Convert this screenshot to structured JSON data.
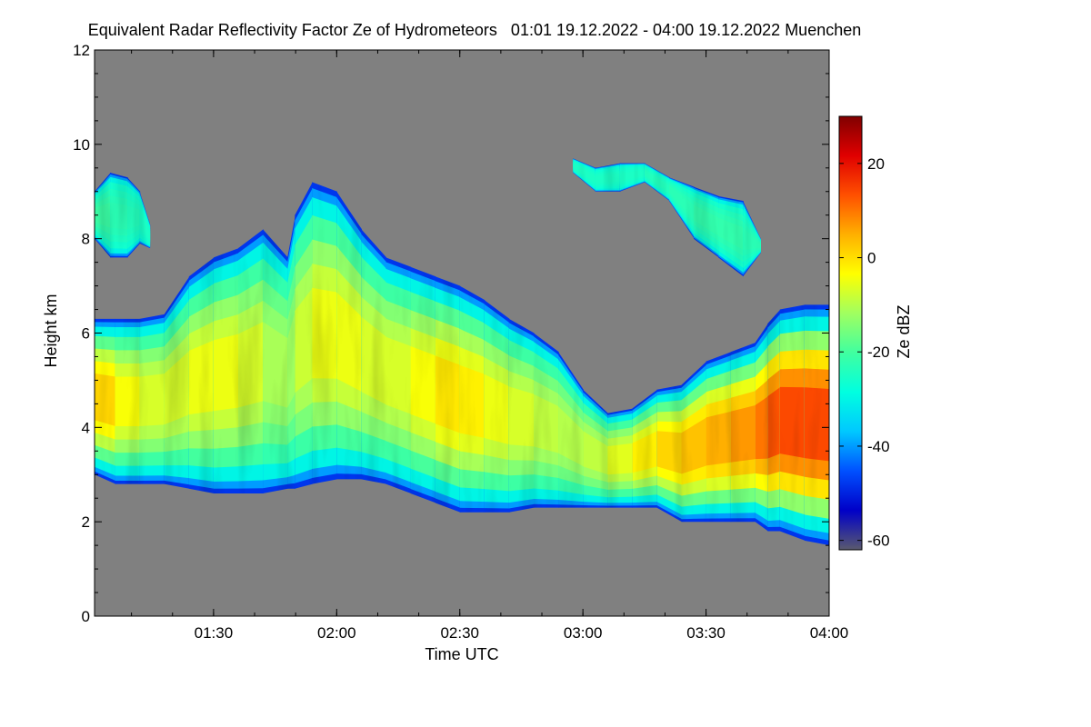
{
  "chart_data": {
    "type": "heatmap",
    "title": "Equivalent Radar Reflectivity Factor Ze of Hydrometeors   01:01 19.12.2022 - 04:00 19.12.2022 Muenchen",
    "xlabel": "Time UTC",
    "ylabel": "Height km",
    "x_unit": "hours UTC",
    "xlim": [
      1.0167,
      4.0
    ],
    "x_ticks": [
      {
        "value": 1.5,
        "label": "01:30"
      },
      {
        "value": 2.0,
        "label": "02:00"
      },
      {
        "value": 2.5,
        "label": "02:30"
      },
      {
        "value": 3.0,
        "label": "03:00"
      },
      {
        "value": 3.5,
        "label": "03:30"
      },
      {
        "value": 4.0,
        "label": "04:00"
      }
    ],
    "ylim": [
      0,
      12
    ],
    "y_ticks": [
      0,
      2,
      4,
      6,
      8,
      10,
      12
    ],
    "colorbar": {
      "label": "Ze dBZ",
      "range": [
        -62,
        30
      ],
      "ticks": [
        -60,
        -40,
        -20,
        0,
        20
      ]
    },
    "background_color": "#808080",
    "colormap": [
      "#5a5a6e",
      "#0000c8",
      "#0050ff",
      "#00c8ff",
      "#00ffe0",
      "#40ffa0",
      "#a0ff60",
      "#ffff00",
      "#ffb000",
      "#ff5000",
      "#e00000",
      "#800000"
    ],
    "cloud_layers": [
      {
        "name": "main precipitating cloud",
        "time": [
          1.0167,
          1.1,
          1.2,
          1.3,
          1.4,
          1.5,
          1.6,
          1.7,
          1.8,
          1.83,
          1.9,
          2.0,
          2.1,
          2.2,
          2.3,
          2.4,
          2.5,
          2.6,
          2.7,
          2.8,
          2.9,
          3.0,
          3.1,
          3.2,
          3.3,
          3.4,
          3.5,
          3.6,
          3.7,
          3.75,
          3.8,
          3.9,
          4.0
        ],
        "top_km": [
          6.3,
          6.3,
          6.3,
          6.4,
          7.2,
          7.6,
          7.8,
          8.2,
          7.6,
          8.5,
          9.2,
          9.0,
          8.2,
          7.6,
          7.4,
          7.2,
          7.0,
          6.7,
          6.3,
          6.0,
          5.6,
          4.8,
          4.3,
          4.4,
          4.8,
          4.9,
          5.4,
          5.6,
          5.8,
          6.2,
          6.5,
          6.6,
          6.6
        ],
        "base_km": [
          3.0,
          2.8,
          2.8,
          2.8,
          2.7,
          2.6,
          2.6,
          2.6,
          2.7,
          2.7,
          2.8,
          2.9,
          2.9,
          2.8,
          2.6,
          2.4,
          2.2,
          2.2,
          2.2,
          2.3,
          2.3,
          2.3,
          2.3,
          2.3,
          2.3,
          2.0,
          2.0,
          2.0,
          2.0,
          1.8,
          1.8,
          1.6,
          1.5
        ],
        "core_dbz": [
          4,
          -2,
          -6,
          -8,
          -6,
          -4,
          -6,
          -8,
          -14,
          -10,
          -6,
          -4,
          -6,
          -8,
          -6,
          -2,
          0,
          -4,
          -6,
          -8,
          -10,
          -10,
          -8,
          -4,
          0,
          2,
          4,
          6,
          8,
          12,
          14,
          14,
          14
        ]
      },
      {
        "name": "upper cirrus left",
        "time": [
          1.0167,
          1.08,
          1.15,
          1.2,
          1.24
        ],
        "top_km": [
          9.0,
          9.4,
          9.3,
          9.0,
          8.3
        ],
        "base_km": [
          8.0,
          7.6,
          7.6,
          7.9,
          7.8
        ],
        "core_dbz": [
          -20,
          -22,
          -24,
          -24,
          -26
        ]
      },
      {
        "name": "upper cirrus right",
        "time": [
          2.96,
          3.05,
          3.15,
          3.25,
          3.35,
          3.45,
          3.55,
          3.65,
          3.72
        ],
        "top_km": [
          9.7,
          9.5,
          9.6,
          9.6,
          9.3,
          9.1,
          8.9,
          8.8,
          8.0
        ],
        "base_km": [
          9.4,
          9.0,
          9.0,
          9.2,
          8.8,
          8.0,
          7.6,
          7.2,
          7.7
        ],
        "core_dbz": [
          -26,
          -24,
          -26,
          -24,
          -24,
          -22,
          -22,
          -22,
          -24
        ]
      }
    ]
  }
}
